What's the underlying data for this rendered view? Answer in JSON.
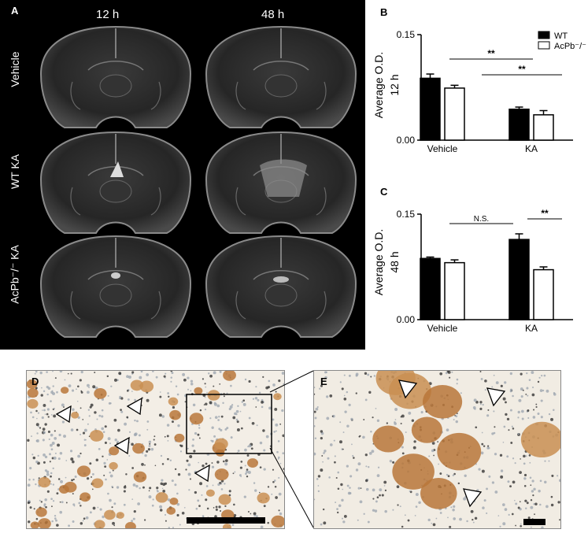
{
  "panelA": {
    "label": "A",
    "columns": [
      "12 h",
      "48 h"
    ],
    "rows": [
      "Vehicle",
      "WT KA",
      "AcPb⁻/⁻ KA"
    ]
  },
  "panelB": {
    "label": "B",
    "ylabel": "Average O.D.",
    "ylabel2": "12 h"
  },
  "panelC": {
    "label": "C",
    "ylabel": "Average O.D.",
    "ylabel2": "48 h"
  },
  "panelD": {
    "label": "D"
  },
  "panelE": {
    "label": "E"
  },
  "legend": {
    "wt": "WT",
    "ko": "AcPb⁻/⁻"
  },
  "colors": {
    "wt": "#000000",
    "ko": "#ffffff",
    "background_A": "#000000"
  },
  "chart_data": [
    {
      "type": "bar",
      "panel": "B",
      "categories": [
        "Vehicle",
        "KA"
      ],
      "series": [
        {
          "name": "WT",
          "values": [
            0.088,
            0.044
          ],
          "err": [
            0.006,
            0.003
          ]
        },
        {
          "name": "AcPb-/-",
          "values": [
            0.074,
            0.036
          ],
          "err": [
            0.004,
            0.006
          ]
        }
      ],
      "ylim": [
        0,
        0.15
      ],
      "yticks": [
        "0.00",
        "0.15"
      ],
      "ylabel": "Average O.D.",
      "annotations": [
        {
          "text": "**",
          "between": "Vehicle WT – KA WT"
        },
        {
          "text": "**",
          "between": "Vehicle AcPb-/- – KA AcPb-/-"
        }
      ]
    },
    {
      "type": "bar",
      "panel": "C",
      "categories": [
        "Vehicle",
        "KA"
      ],
      "series": [
        {
          "name": "WT",
          "values": [
            0.087,
            0.114
          ],
          "err": [
            0.002,
            0.008
          ]
        },
        {
          "name": "AcPb-/-",
          "values": [
            0.081,
            0.071
          ],
          "err": [
            0.004,
            0.004
          ]
        }
      ],
      "ylim": [
        0,
        0.15
      ],
      "yticks": [
        "0.00",
        "0.15"
      ],
      "ylabel": "Average O.D.",
      "annotations": [
        {
          "text": "N.S.",
          "between": "Vehicle WT – KA WT"
        },
        {
          "text": "**",
          "between": "KA WT – KA AcPb-/-"
        }
      ]
    }
  ]
}
